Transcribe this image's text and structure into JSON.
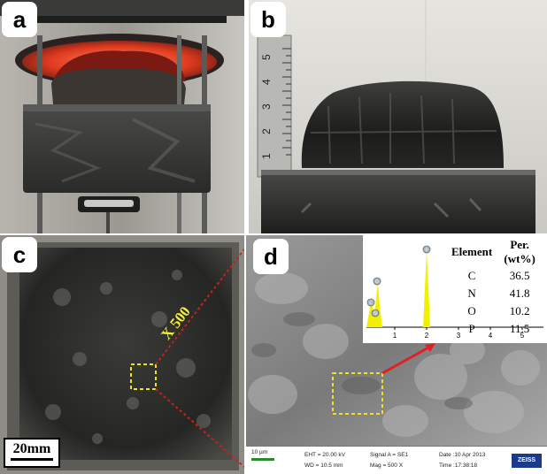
{
  "panels": {
    "a": {
      "letter": "a"
    },
    "b": {
      "letter": "b",
      "ruler_digits": [
        "1",
        "2",
        "3",
        "4",
        "5"
      ]
    },
    "c": {
      "letter": "c",
      "scale_bar": "20mm",
      "magnification": "X 500"
    },
    "d": {
      "letter": "d"
    }
  },
  "eds": {
    "headers": [
      "Element",
      "Per. (wt%)"
    ],
    "rows": [
      {
        "element": "C",
        "value": "36.5"
      },
      {
        "element": "N",
        "value": "41.8"
      },
      {
        "element": "O",
        "value": "10.2"
      },
      {
        "element": "P",
        "value": "11.5"
      }
    ],
    "peak_labels": [
      "C",
      "N",
      "O",
      "P"
    ],
    "x_ticks": [
      "1",
      "2",
      "3",
      "4",
      "5"
    ],
    "colors": {
      "peak": "#f0f000",
      "marker": "#aab8c8",
      "arrow": "#e02020"
    }
  },
  "sem_footer": {
    "scale": "10 µm",
    "eht": "EHT = 20.00 kV",
    "wd": "WD = 10.5 mm",
    "signal": "Signal A = SE1",
    "mag": "Mag =   500 X",
    "date": "Date :10 Apr 2013",
    "time": "Time :17:38:18",
    "brand": "ZEISS"
  },
  "colors": {
    "highlight_box": "#f0e020",
    "dashed_line": "#c82020"
  }
}
